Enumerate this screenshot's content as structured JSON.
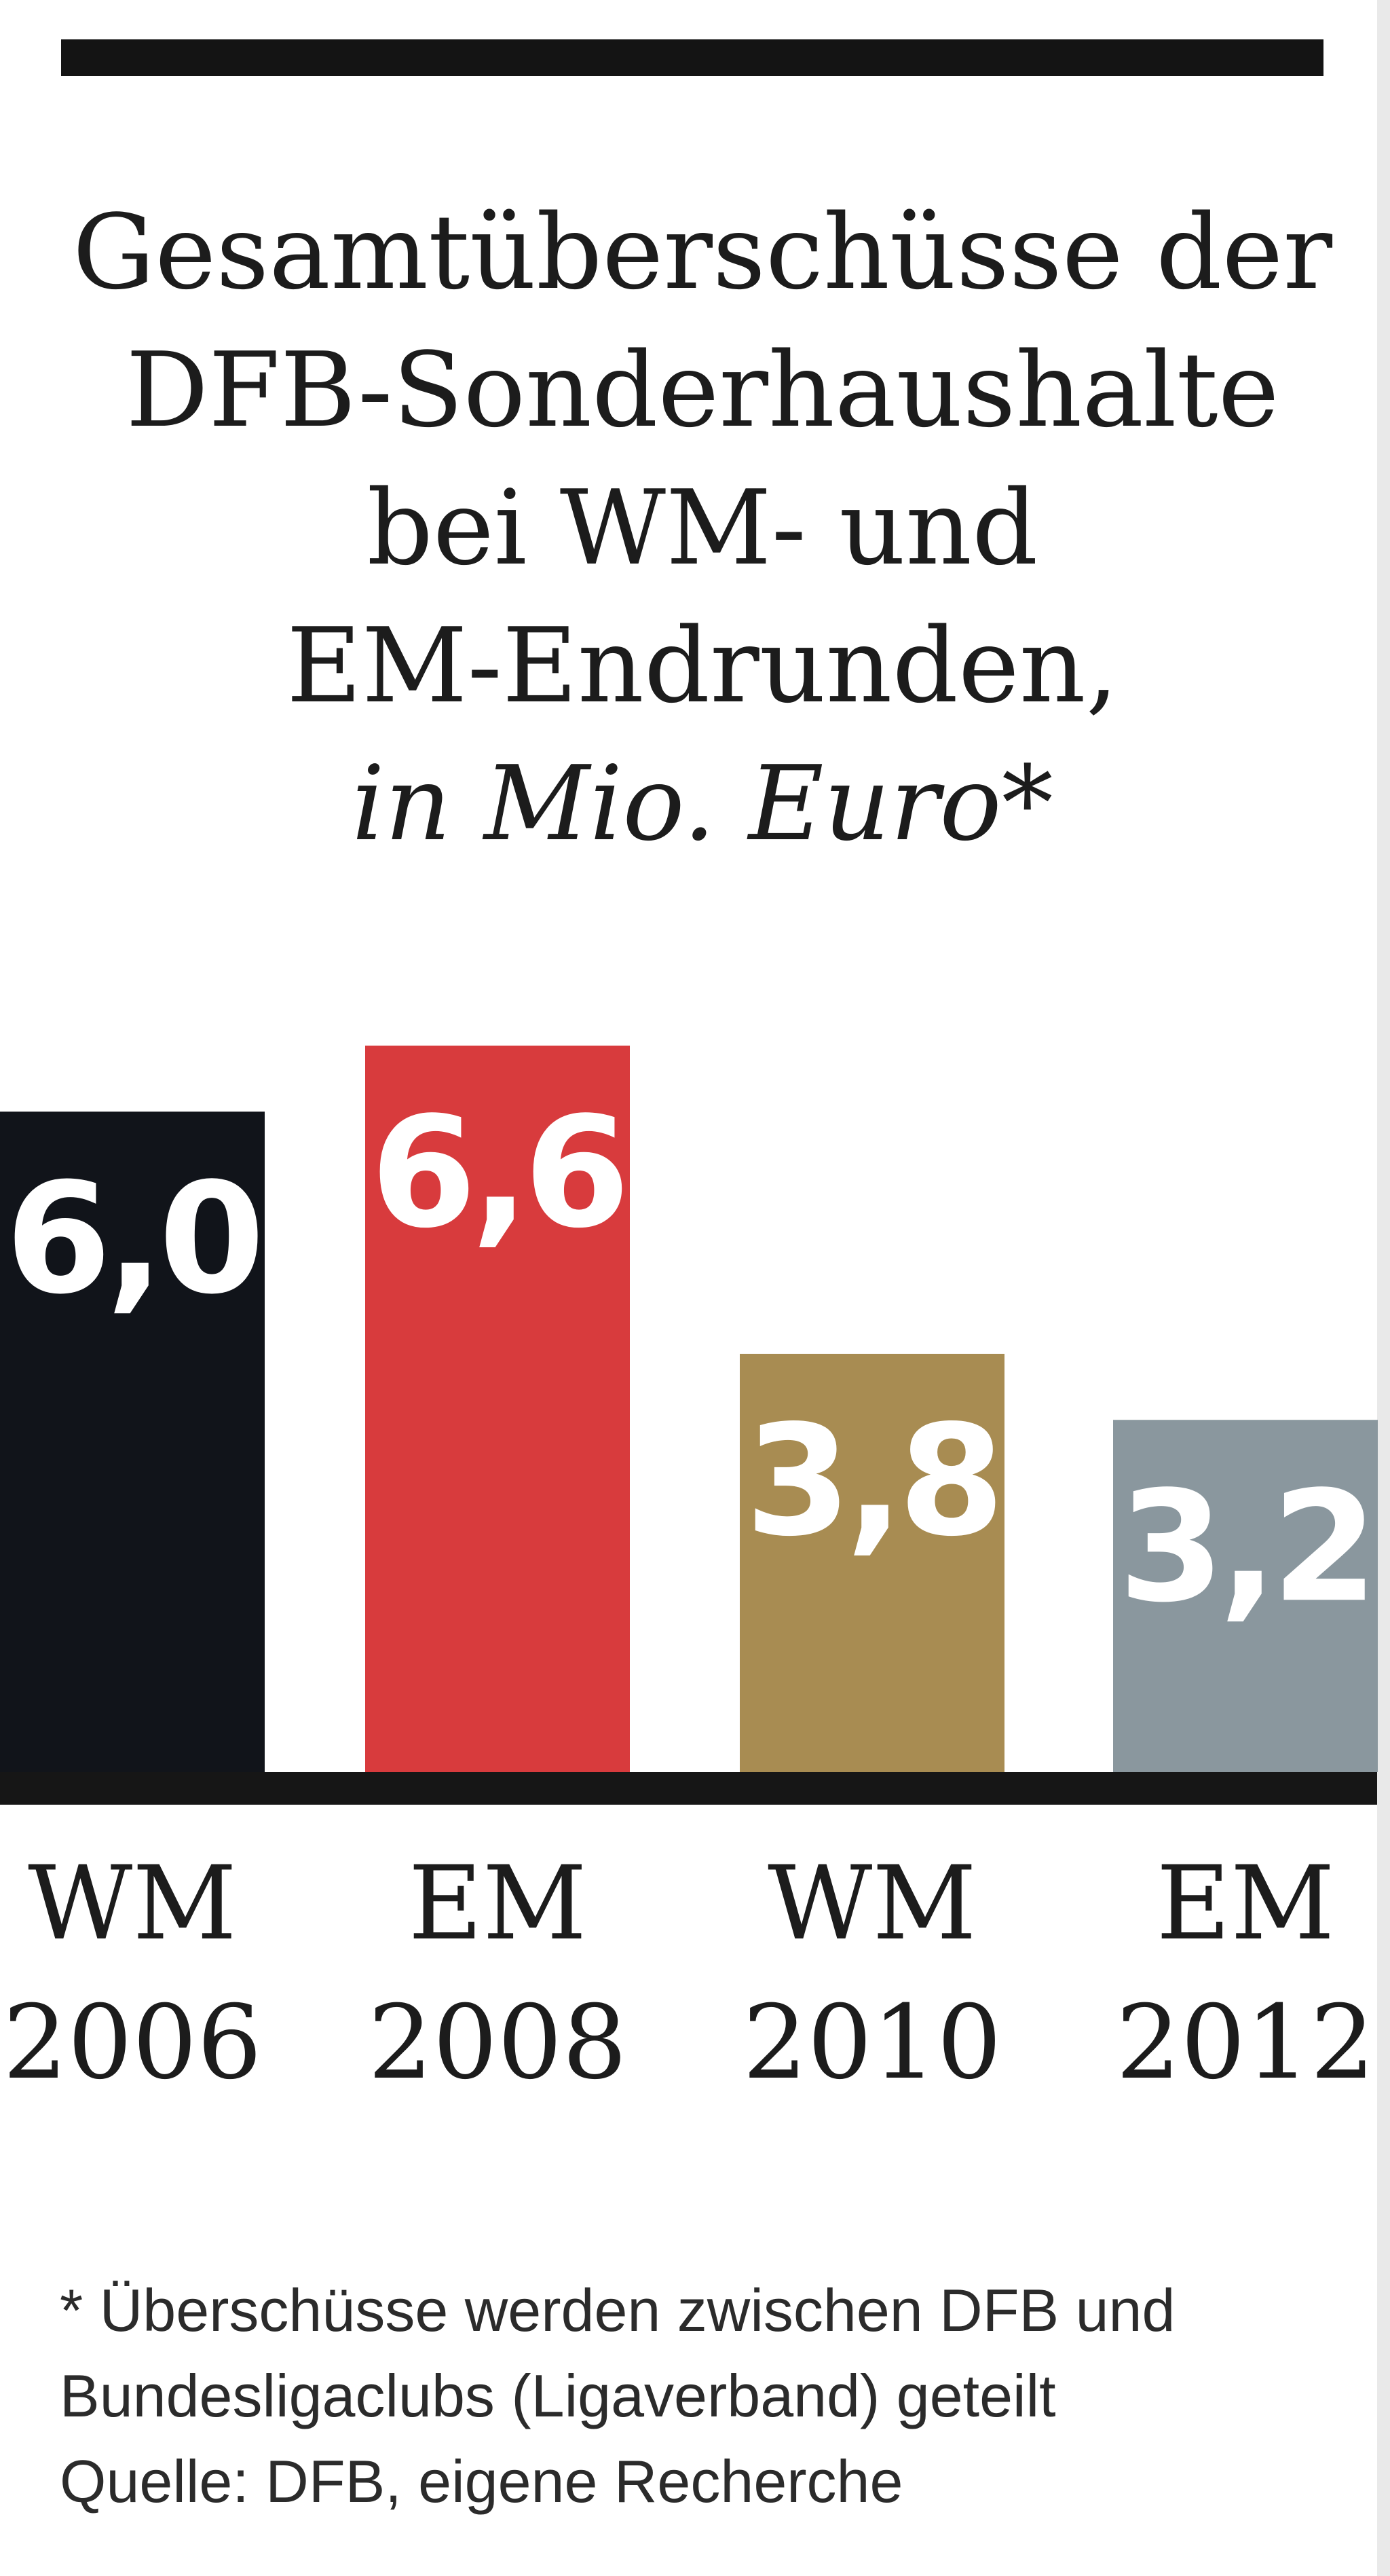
{
  "chart_data": {
    "type": "bar",
    "title_lines": [
      "Gesamtüberschüsse der",
      "DFB-Sonderhaushalte",
      "bei WM- und",
      "EM-Endrunden,"
    ],
    "subtitle": "in Mio. Euro*",
    "categories": [
      [
        "WM",
        "2006"
      ],
      [
        "EM",
        "2008"
      ],
      [
        "WM",
        "2010"
      ],
      [
        "EM",
        "2012"
      ]
    ],
    "values": [
      6.0,
      6.6,
      3.8,
      3.2
    ],
    "value_labels": [
      "6,0",
      "6,6",
      "3,8",
      "3,2"
    ],
    "colors": [
      "#11141a",
      "#d83b3d",
      "#a88c52",
      "#8a979e"
    ],
    "label_color": "#ffffff",
    "xlabel": "",
    "ylabel": "",
    "ylim": [
      0,
      6.6
    ],
    "grid": false,
    "legend": "none"
  },
  "footnote": {
    "lines": [
      "* Überschüsse werden zwischen DFB und",
      "Bundesligaclubs (Ligaverband) geteilt",
      "Quelle: DFB, eigene Recherche"
    ]
  }
}
